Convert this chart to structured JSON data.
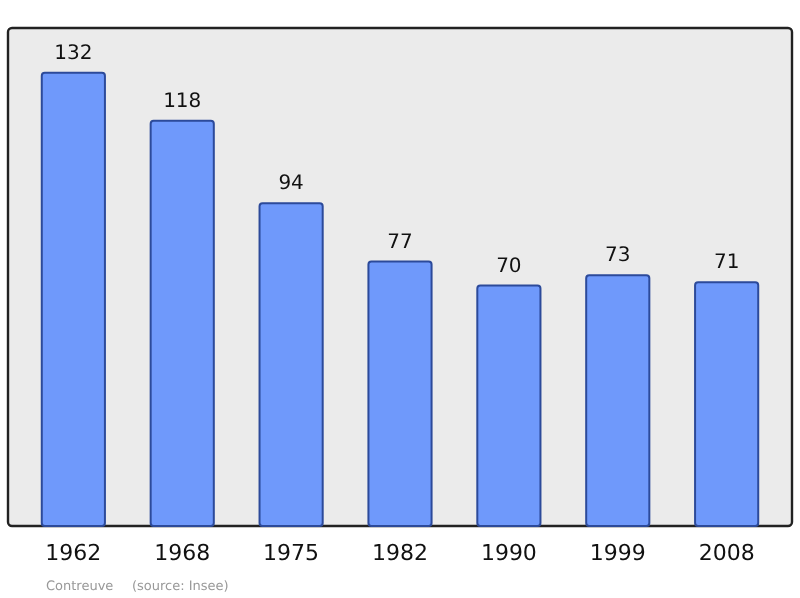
{
  "chart_data": {
    "type": "bar",
    "categories": [
      "1962",
      "1968",
      "1975",
      "1982",
      "1990",
      "1999",
      "2008"
    ],
    "values": [
      132,
      118,
      94,
      77,
      70,
      73,
      71
    ],
    "color": "#6f99fb",
    "ylim": [
      0,
      145
    ],
    "data_labels": true,
    "grid": false,
    "annotations": [
      "Contreuve",
      "(source: Insee)"
    ]
  }
}
